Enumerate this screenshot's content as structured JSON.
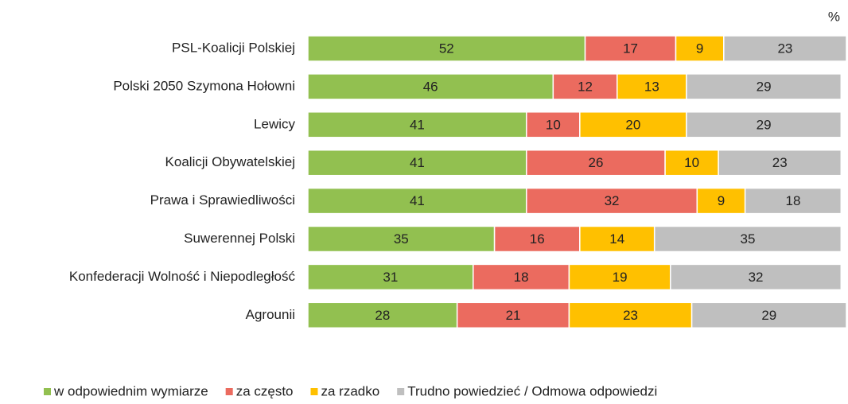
{
  "chart_data": {
    "type": "stacked-bar-horizontal",
    "unit_label": "%",
    "categories": [
      "PSL-Koalicji Polskiej",
      "Polski 2050 Szymona Hołowni",
      "Lewicy",
      "Koalicji Obywatelskiej",
      "Prawa i Sprawiedliwości",
      "Suwerennej Polski",
      "Konfederacji Wolność i Niepodległość",
      "Agrounii"
    ],
    "series": [
      {
        "name": "w odpowiednim wymiarze",
        "color": "#92c050",
        "values": [
          52,
          46,
          41,
          41,
          41,
          35,
          31,
          28
        ]
      },
      {
        "name": "za często",
        "color": "#eb6b5f",
        "values": [
          17,
          12,
          10,
          26,
          32,
          16,
          18,
          21
        ]
      },
      {
        "name": "za rzadko",
        "color": "#ffc000",
        "values": [
          9,
          13,
          20,
          10,
          9,
          14,
          19,
          23
        ]
      },
      {
        "name": "Trudno powiedzieć / Odmowa odpowiedzi",
        "color": "#bfbfbf",
        "values": [
          23,
          29,
          29,
          23,
          18,
          35,
          32,
          29
        ]
      }
    ],
    "xlim": [
      0,
      101
    ],
    "legend": "bottom"
  }
}
